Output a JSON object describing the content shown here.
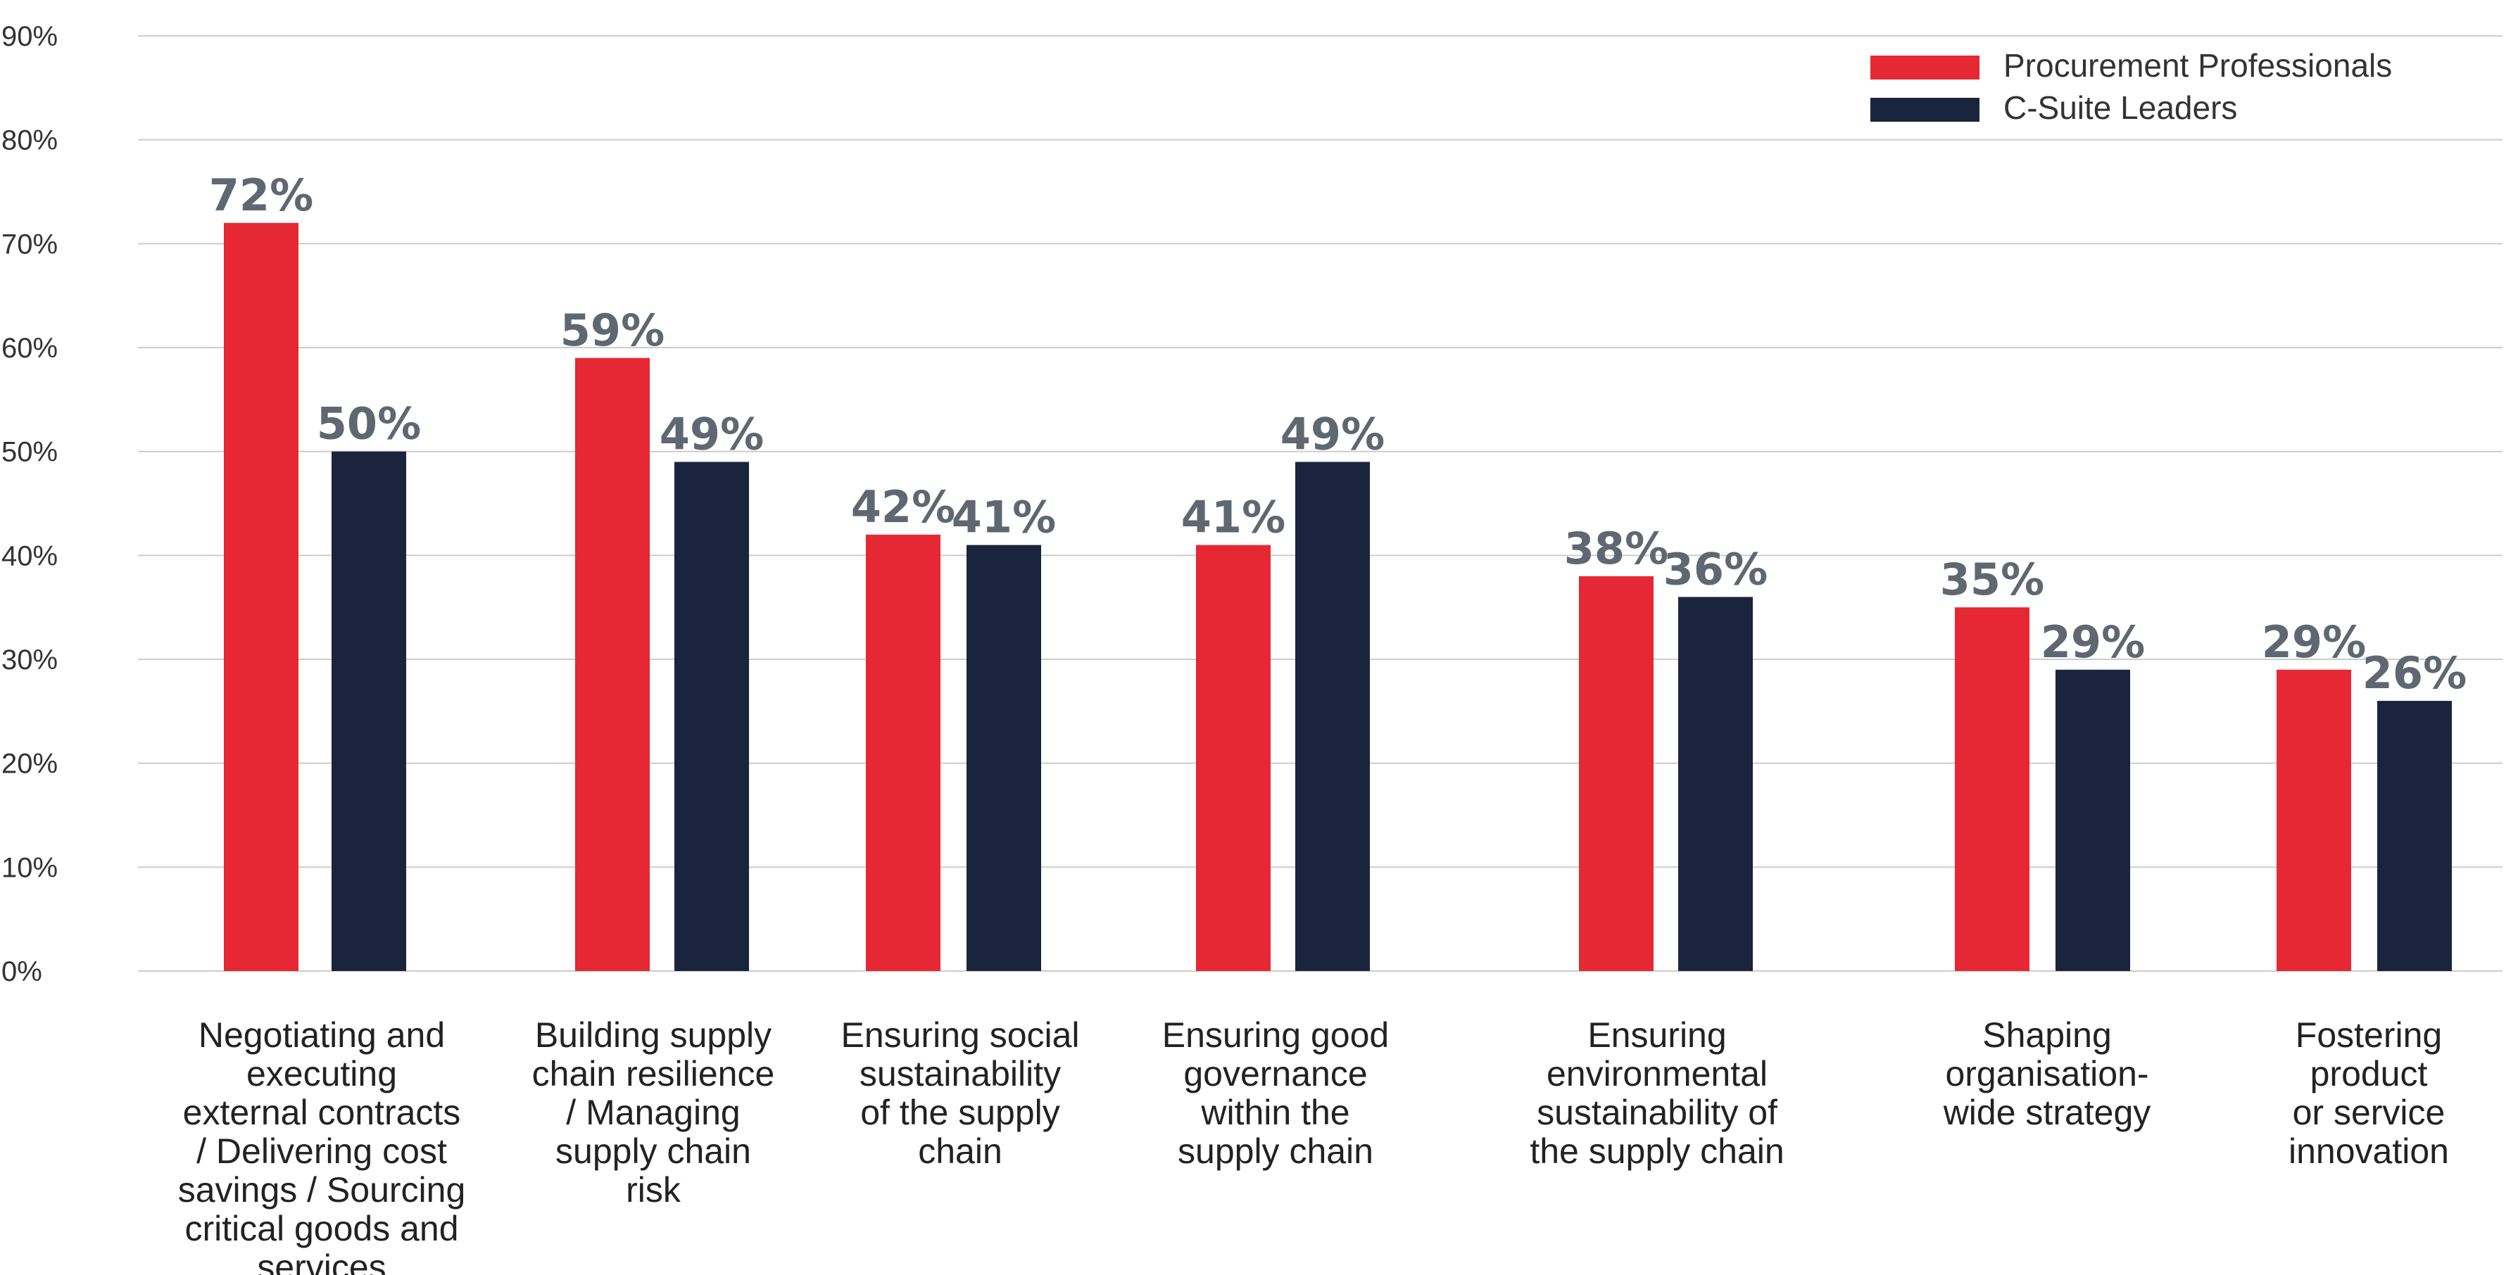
{
  "chart_data": {
    "type": "bar",
    "title": "",
    "xlabel": "",
    "ylabel": "",
    "ylim": [
      0,
      90
    ],
    "yticks": [
      "0%",
      "10%",
      "20%",
      "30%",
      "40%",
      "50%",
      "60%",
      "70%",
      "80%",
      "90%"
    ],
    "grid": true,
    "legend_position": "top-right",
    "categories": [
      [
        "Negotiating and",
        "executing",
        "external contracts",
        "/ Delivering cost",
        "savings / Sourcing",
        "critical goods and",
        "services"
      ],
      [
        "Building supply",
        "chain resilience",
        "/ Managing",
        "supply chain",
        "risk"
      ],
      [
        "Ensuring social",
        "sustainability",
        "of the supply",
        "chain"
      ],
      [
        "Ensuring good",
        "governance",
        "within the",
        "supply chain"
      ],
      [
        "Ensuring",
        "environmental",
        "sustainability of",
        "the supply chain"
      ],
      [
        "Shaping",
        "organisation-",
        "wide strategy"
      ],
      [
        "Fostering",
        "product",
        "or service",
        "innovation"
      ]
    ],
    "series": [
      {
        "name": "Procurement Professionals",
        "color": "#e52833",
        "values": [
          72,
          59,
          42,
          41,
          38,
          35,
          29
        ],
        "labels": [
          "72%",
          "59%",
          "42%",
          "41%",
          "38%",
          "35%",
          "29%"
        ]
      },
      {
        "name": "C-Suite Leaders",
        "color": "#1a243d",
        "values": [
          50,
          49,
          41,
          49,
          36,
          29,
          26
        ],
        "labels": [
          "50%",
          "49%",
          "41%",
          "49%",
          "36%",
          "29%",
          "26%"
        ]
      }
    ],
    "colors": {
      "grid": "#cccccc",
      "data_label": "#5f6770"
    }
  }
}
